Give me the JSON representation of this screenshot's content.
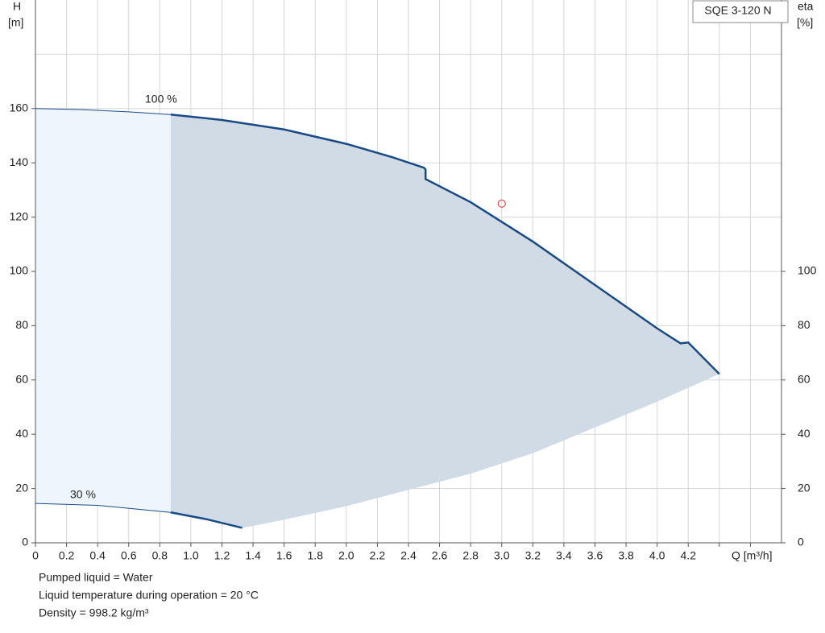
{
  "chart_data": {
    "type": "line",
    "title": "SQE 3-120 N",
    "y_label": "H",
    "y_unit": "[m]",
    "y2_label": "eta",
    "y2_unit": "[%]",
    "x_label": "Q [m³/h]",
    "xlim": [
      0,
      4.8
    ],
    "ylim": [
      0,
      200
    ],
    "y2lim": [
      0,
      200
    ],
    "xticks": [
      0,
      0.2,
      0.4,
      0.6,
      0.8,
      {
        "value": 1,
        "label": "1.0"
      },
      1.2,
      1.4,
      1.6,
      1.8,
      {
        "value": 2,
        "label": "2.0"
      },
      2.2,
      2.4,
      2.6,
      2.8,
      {
        "value": 3,
        "label": "3.0"
      },
      3.2,
      3.4,
      3.6,
      3.8,
      {
        "value": 4,
        "label": "4.0"
      },
      4.2
    ],
    "xgrid_extra": [
      4.4,
      4.6
    ],
    "yticks": [
      0,
      20,
      40,
      60,
      80,
      100,
      120,
      140,
      160
    ],
    "ygrid_extra": [
      180
    ],
    "y2ticks": [
      0,
      20,
      40,
      60,
      80,
      100
    ],
    "grid": true,
    "shade_from": 0.87,
    "series": [
      {
        "name": "100 %",
        "color": "#1a4a86",
        "x": [
          0,
          0.3,
          0.6,
          0.87,
          1.2,
          1.6,
          2.0,
          2.3,
          2.5,
          2.51,
          2.51,
          2.8,
          3.2,
          3.6,
          4.0,
          4.15,
          4.2,
          4.4
        ],
        "values": [
          160,
          159.6,
          158.8,
          157.8,
          155.8,
          152.3,
          147,
          142,
          138.2,
          137.5,
          134,
          125.5,
          111,
          95,
          79,
          73.5,
          73.8,
          62.2
        ]
      },
      {
        "name": "30 %",
        "color": "#1a4a86",
        "x": [
          0,
          0.4,
          0.87,
          1.1,
          1.33
        ],
        "values": [
          14.5,
          13.8,
          11.2,
          8.7,
          5.5
        ]
      },
      {
        "x": [
          1.33,
          1.6,
          2.0,
          2.4,
          2.8,
          3.2,
          3.6,
          4.0,
          4.4
        ],
        "values": [
          5.5,
          8.5,
          13.5,
          19.5,
          25.5,
          33,
          42.5,
          52,
          62.2
        ]
      }
    ],
    "duty_point": {
      "x": 3.0,
      "value": 125,
      "color": "#e03030"
    },
    "notes": [
      "Pumped liquid = Water",
      "Liquid temperature during operation = 20 °C",
      "Density = 998.2 kg/m³"
    ]
  }
}
